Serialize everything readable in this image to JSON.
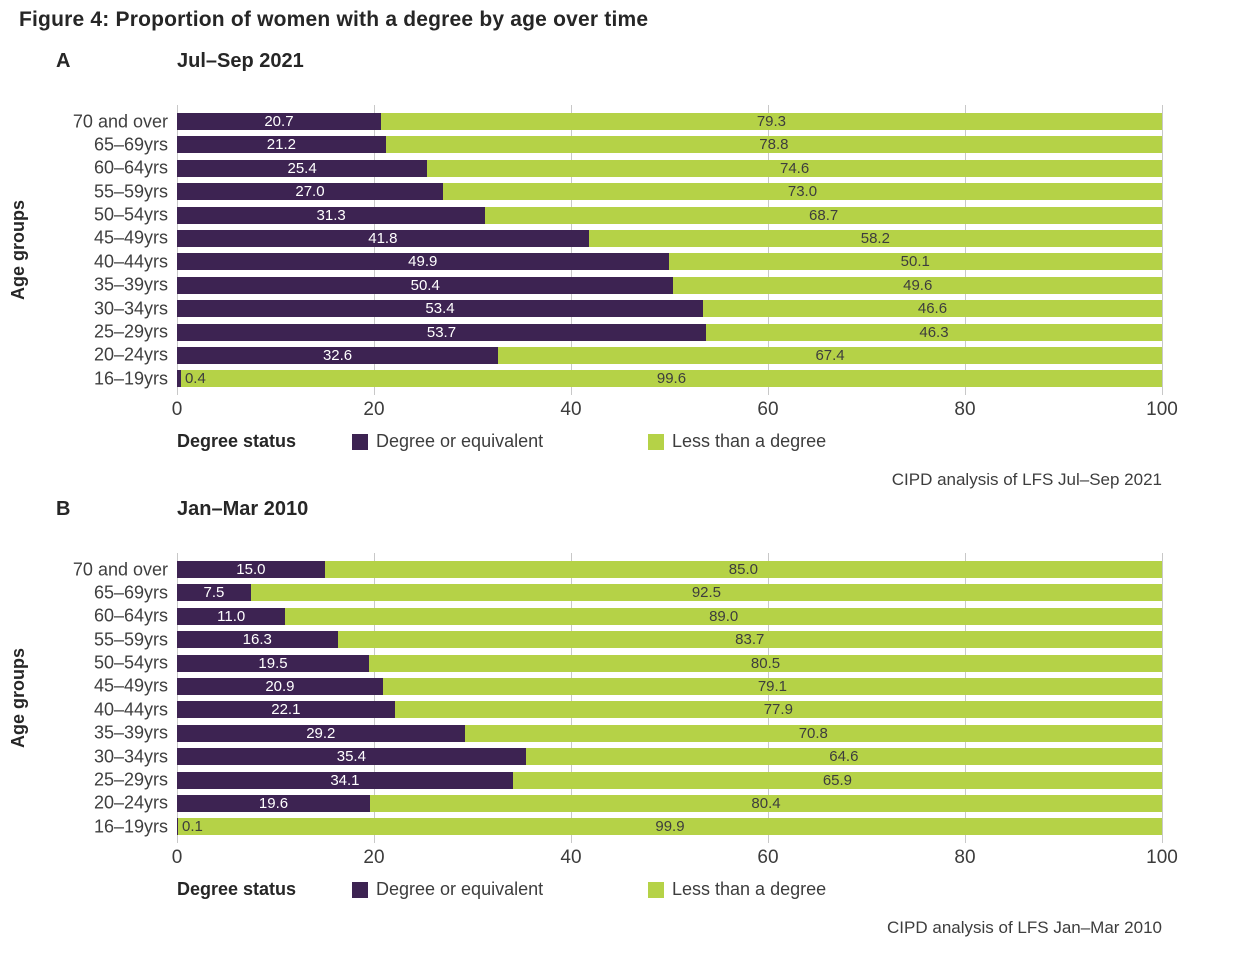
{
  "figure_title": "Figure 4: Proportion of women with a degree by age over time",
  "colors": {
    "degree": "#3D2352",
    "less_than_degree": "#B5D247",
    "gridline": "#C8C8C8"
  },
  "legend": {
    "title": "Degree status",
    "items": [
      {
        "label": "Degree or equivalent",
        "color": "#3D2352"
      },
      {
        "label": "Less than a degree",
        "color": "#B5D247"
      }
    ]
  },
  "chart_data": [
    {
      "type": "bar",
      "stacked": true,
      "orientation": "horizontal",
      "panel_label": "A",
      "title": "Jul–Sep 2021",
      "ylabel": "Age groups",
      "xlim": [
        0,
        100
      ],
      "xticks": [
        0,
        20,
        40,
        60,
        80,
        100
      ],
      "grid": "vertical",
      "categories": [
        "70 and over",
        "65–69yrs",
        "60–64yrs",
        "55–59yrs",
        "50–54yrs",
        "45–49yrs",
        "40–44yrs",
        "35–39yrs",
        "30–34yrs",
        "25–29yrs",
        "20–24yrs",
        "16–19yrs"
      ],
      "series": [
        {
          "name": "Degree or equivalent",
          "values": [
            20.7,
            21.2,
            25.4,
            27.0,
            31.3,
            41.8,
            49.9,
            50.4,
            53.4,
            53.7,
            32.6,
            0.4
          ]
        },
        {
          "name": "Less than a degree",
          "values": [
            79.3,
            78.8,
            74.6,
            73.0,
            68.7,
            58.2,
            50.1,
            49.6,
            46.6,
            46.3,
            67.4,
            99.6
          ]
        }
      ],
      "source": "CIPD analysis of LFS Jul–Sep 2021"
    },
    {
      "type": "bar",
      "stacked": true,
      "orientation": "horizontal",
      "panel_label": "B",
      "title": "Jan–Mar 2010",
      "ylabel": "Age groups",
      "xlim": [
        0,
        100
      ],
      "xticks": [
        0,
        20,
        40,
        60,
        80,
        100
      ],
      "grid": "vertical",
      "categories": [
        "70 and over",
        "65–69yrs",
        "60–64yrs",
        "55–59yrs",
        "50–54yrs",
        "45–49yrs",
        "40–44yrs",
        "35–39yrs",
        "30–34yrs",
        "25–29yrs",
        "20–24yrs",
        "16–19yrs"
      ],
      "series": [
        {
          "name": "Degree or equivalent",
          "values": [
            15.0,
            7.5,
            11.0,
            16.3,
            19.5,
            20.9,
            22.1,
            29.2,
            35.4,
            34.1,
            19.6,
            0.1
          ]
        },
        {
          "name": "Less than a degree",
          "values": [
            85.0,
            92.5,
            89.0,
            83.7,
            80.5,
            79.1,
            77.9,
            70.8,
            64.6,
            65.9,
            80.4,
            99.9
          ]
        }
      ],
      "source": "CIPD analysis of LFS Jan–Mar 2010"
    }
  ]
}
